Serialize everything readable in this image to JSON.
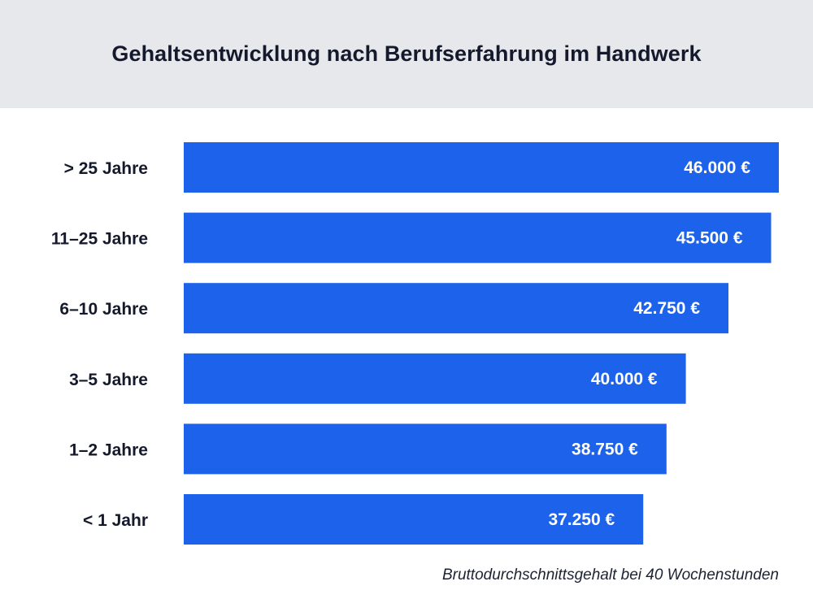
{
  "title": "Gehaltsentwicklung nach Berufserfahrung im Handwerk",
  "footnote": "Bruttodurchschnittsgehalt bei 40 Wochenstunden",
  "colors": {
    "bar": "#1c62ea",
    "header_bg": "#e7e8ec",
    "text": "#14192b"
  },
  "chart_data": {
    "type": "bar",
    "orientation": "horizontal",
    "title": "Gehaltsentwicklung nach Berufserfahrung im Handwerk",
    "xlabel": "",
    "ylabel": "",
    "categories": [
      "> 25 Jahre",
      "11–25 Jahre",
      "6–10 Jahre",
      "3–5 Jahre",
      "1–2 Jahre",
      "< 1 Jahr"
    ],
    "values": [
      46000,
      45500,
      42750,
      40000,
      38750,
      37250
    ],
    "value_labels": [
      "46.000 €",
      "45.500 €",
      "42.750 €",
      "40.000 €",
      "38.750 €",
      "37.250 €"
    ],
    "xlim": [
      0,
      46000
    ],
    "grid": false,
    "legend": "none"
  }
}
